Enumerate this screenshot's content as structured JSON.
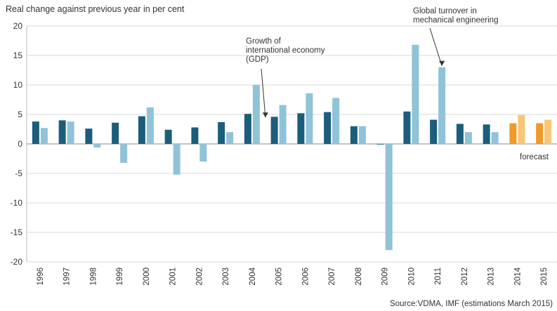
{
  "chart_data": {
    "type": "bar",
    "title": "Real change against previous year in per cent",
    "xlabel": "",
    "ylabel": "",
    "ylim": [
      -20,
      20
    ],
    "yticks": [
      20,
      15,
      10,
      5,
      0,
      -5,
      -10,
      -15,
      -20
    ],
    "categories": [
      "1996",
      "1997",
      "1998",
      "1999",
      "2000",
      "2001",
      "2002",
      "2003",
      "2004",
      "2005",
      "2006",
      "2007",
      "2008",
      "2009",
      "2010",
      "2011",
      "2012",
      "2013",
      "2014",
      "2015"
    ],
    "series": [
      {
        "name": "Global turnover in mechanical engineering",
        "values": [
          3.8,
          4.0,
          2.6,
          3.6,
          4.7,
          2.4,
          2.8,
          3.7,
          5.1,
          4.6,
          5.2,
          5.4,
          3.0,
          0.0,
          5.5,
          4.1,
          3.4,
          3.3,
          3.5,
          3.5
        ],
        "color": "#1b5e7b",
        "forecast_color": "#ef9a2a"
      },
      {
        "name": "Growth of international economy (GDP)",
        "values": [
          2.7,
          3.8,
          -0.6,
          -3.2,
          6.2,
          -5.2,
          -3.0,
          2.0,
          10.0,
          6.6,
          8.6,
          7.8,
          3.0,
          -18.0,
          16.8,
          13.0,
          2.0,
          2.0,
          4.9,
          4.1
        ],
        "color": "#90c3d8",
        "forecast_color": "#f7c777"
      }
    ],
    "forecast_categories": [
      "2014",
      "2015"
    ],
    "annotations": {
      "gdp": "Growth of\ninternational economy\n(GDP)",
      "turnover": "Global turnover in\nmechanical engineering",
      "forecast": "forecast"
    },
    "source": "Source:VDMA, IMF (estimations March 2015)",
    "grid": "horizontal",
    "legend": "none"
  }
}
